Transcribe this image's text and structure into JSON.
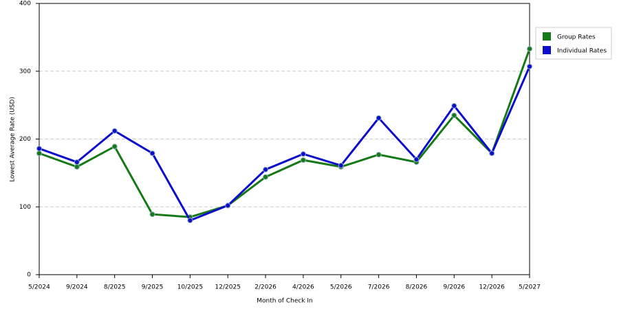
{
  "chart_data": {
    "type": "line",
    "x_label": "Month of Check In",
    "y_label": "Lowest Average Rate (USD)",
    "categories": [
      "5/2024",
      "9/2024",
      "8/2025",
      "9/2025",
      "10/2025",
      "12/2025",
      "2/2026",
      "4/2026",
      "5/2026",
      "7/2026",
      "8/2026",
      "9/2026",
      "12/2026",
      "5/2027"
    ],
    "series": [
      {
        "name": "Group Rates",
        "color": "#157a15",
        "values": [
          179,
          159,
          189,
          89,
          85,
          102,
          144,
          169,
          159,
          177,
          166,
          235,
          179,
          333
        ]
      },
      {
        "name": "Individual Rates",
        "color": "#0c0ccc",
        "values": [
          186,
          166,
          212,
          179,
          80,
          102,
          155,
          178,
          161,
          231,
          170,
          249,
          179,
          307
        ]
      }
    ],
    "ylim": [
      0,
      400
    ],
    "yticks": [
      0,
      100,
      200,
      300,
      400
    ],
    "grid": true,
    "legend": "right"
  }
}
